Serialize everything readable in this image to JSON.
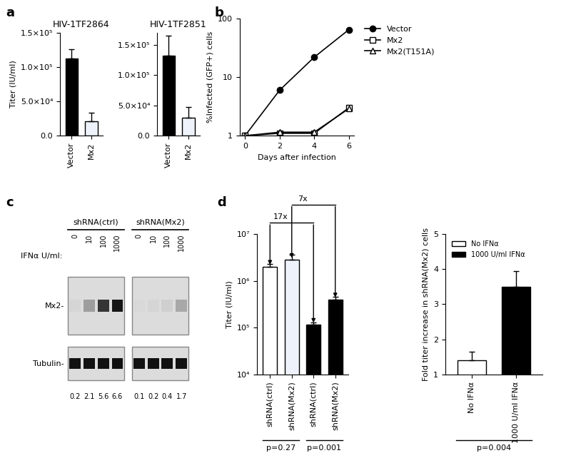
{
  "chart_data": [
    {
      "panel": "a",
      "type": "bar",
      "title": "HIV-1TF2864",
      "y_label": "Titer (IU/ml)",
      "categories": [
        "Vector",
        "Mx2"
      ],
      "values": [
        113000,
        21000
      ],
      "errors": [
        13000,
        13000
      ],
      "colors": [
        "#000000",
        "#eef2fa"
      ],
      "ylim": [
        0,
        150000
      ],
      "yticks": [
        {
          "value": 0,
          "label": "0.0"
        },
        {
          "value": 50000,
          "label": "5.0×10⁴"
        },
        {
          "value": 100000,
          "label": "1.0×10⁵"
        },
        {
          "value": 150000,
          "label": "1.5×10⁵"
        }
      ]
    },
    {
      "type": "bar",
      "title": "HIV-1TF2851",
      "categories": [
        "Vector",
        "Mx2"
      ],
      "values": [
        132000,
        30000
      ],
      "errors": [
        33000,
        17000
      ],
      "colors": [
        "#000000",
        "#eef2fa"
      ],
      "ylim": [
        0,
        170000
      ],
      "yticks": [
        {
          "value": 0,
          "label": "0.0"
        },
        {
          "value": 50000,
          "label": "5.0×10⁴"
        },
        {
          "value": 100000,
          "label": "1.0×10⁵"
        },
        {
          "value": 150000,
          "label": "1.5×10⁵"
        }
      ]
    },
    {
      "panel": "b",
      "type": "line",
      "x_label": "Days after infection",
      "y_label": "%Infected (GFP+) cells",
      "x": [
        0,
        2,
        4,
        6
      ],
      "xlim": [
        -0.3,
        6.3
      ],
      "xticks": [
        0,
        2,
        4,
        6
      ],
      "log": "y",
      "ylim": [
        1,
        100
      ],
      "yticks": [
        1,
        10,
        100
      ],
      "legend": "upper left",
      "series": [
        {
          "name": "Vector",
          "color": "#000000",
          "marker": "o",
          "line_style": "solid",
          "values": [
            1,
            6,
            22,
            65
          ]
        },
        {
          "name": "Mx2",
          "color": "#000000",
          "marker": "s",
          "line_style": "solid",
          "values": [
            1,
            1.1,
            1.1,
            3.0
          ]
        },
        {
          "name": "Mx2(T151A)",
          "color": "#000000",
          "marker": "^",
          "line_style": "solid",
          "values": [
            1,
            1.15,
            1.15,
            2.9
          ]
        }
      ]
    },
    {
      "panel": "d",
      "type": "bar",
      "y_label": "Titer (IU/ml)",
      "categories": [
        "shRNA(ctrl)",
        "shRNA(Mx2)",
        "shRNA(ctrl)",
        "shRNA(Mx2)"
      ],
      "values": [
        2000000,
        2800000,
        115000,
        400000
      ],
      "errors": [
        300000,
        800000,
        15000,
        50000
      ],
      "colors": [
        "#ffffff",
        "#eef2fa",
        "#000000",
        "#000000"
      ],
      "log": "y",
      "ylim": [
        10000,
        10000000
      ],
      "yticks": [
        {
          "value": 10000,
          "label": "10⁴"
        },
        {
          "value": 100000,
          "label": "10⁵"
        },
        {
          "value": 1000000,
          "label": "10⁶"
        },
        {
          "value": 10000000,
          "label": "10⁷"
        }
      ],
      "fold_changes": [
        {
          "label": "17x",
          "from": 0,
          "to": 2
        },
        {
          "label": "7x",
          "from": 1,
          "to": 3
        }
      ],
      "p_values": [
        {
          "label": "p=0.27",
          "from": 0,
          "to": 1
        },
        {
          "label": "p=0.001",
          "from": 2,
          "to": 3
        }
      ]
    },
    {
      "type": "bar",
      "y_label": "Fold titer increase in shRNA(Mx2) cells",
      "categories": [
        "No IFNα",
        "1000 U/ml IFNα"
      ],
      "values": [
        1.4,
        3.5
      ],
      "errors": [
        0.25,
        0.45
      ],
      "colors": [
        "#ffffff",
        "#000000"
      ],
      "ylim": [
        1,
        5
      ],
      "yticks": [
        1,
        2,
        3,
        4,
        5
      ],
      "legend": "upper left",
      "p_values": [
        {
          "label": "p=0.004",
          "from": 0,
          "to": 1
        }
      ]
    }
  ],
  "blot": {
    "panel": "c",
    "groups": [
      "shRNA(ctrl)",
      "shRNA(Mx2)"
    ],
    "dose_label": "IFNα U/ml:",
    "doses": [
      0,
      10,
      100,
      1000
    ],
    "rows": [
      "Mx2-",
      "Tubulin-"
    ],
    "quantification": [
      0.2,
      2.1,
      5.6,
      6.6,
      0.1,
      0.2,
      0.4,
      1.7
    ]
  }
}
